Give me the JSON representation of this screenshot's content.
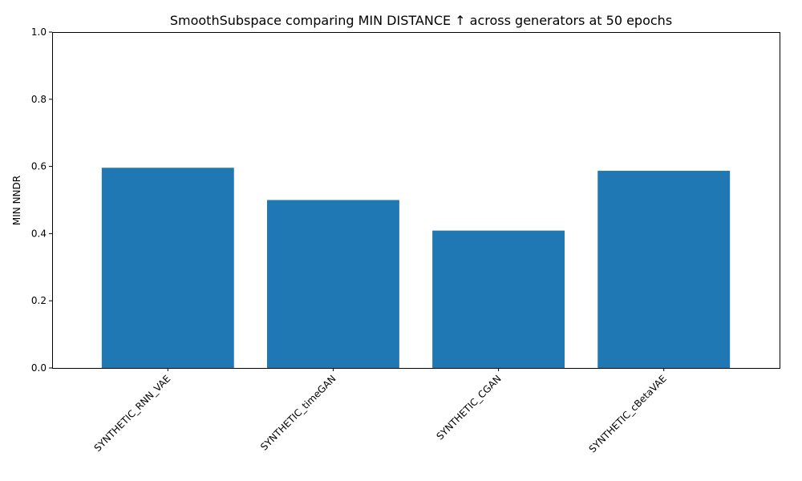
{
  "chart_data": {
    "type": "bar",
    "title": "SmoothSubspace comparing MIN DISTANCE ↑  across generators at 50 epochs",
    "xlabel": "",
    "ylabel": "MIN NNDR",
    "categories": [
      "SYNTHETIC_RNN_VAE",
      "SYNTHETIC_timeGAN",
      "SYNTHETIC_CGAN",
      "SYNTHETIC_cBetaVAE"
    ],
    "values": [
      0.596,
      0.5,
      0.409,
      0.587
    ],
    "ylim": [
      0,
      1.0
    ],
    "yticks": [
      "0.0",
      "0.2",
      "0.4",
      "0.6",
      "0.8",
      "1.0"
    ],
    "grid": false,
    "bar_color": "#1f77b4"
  }
}
